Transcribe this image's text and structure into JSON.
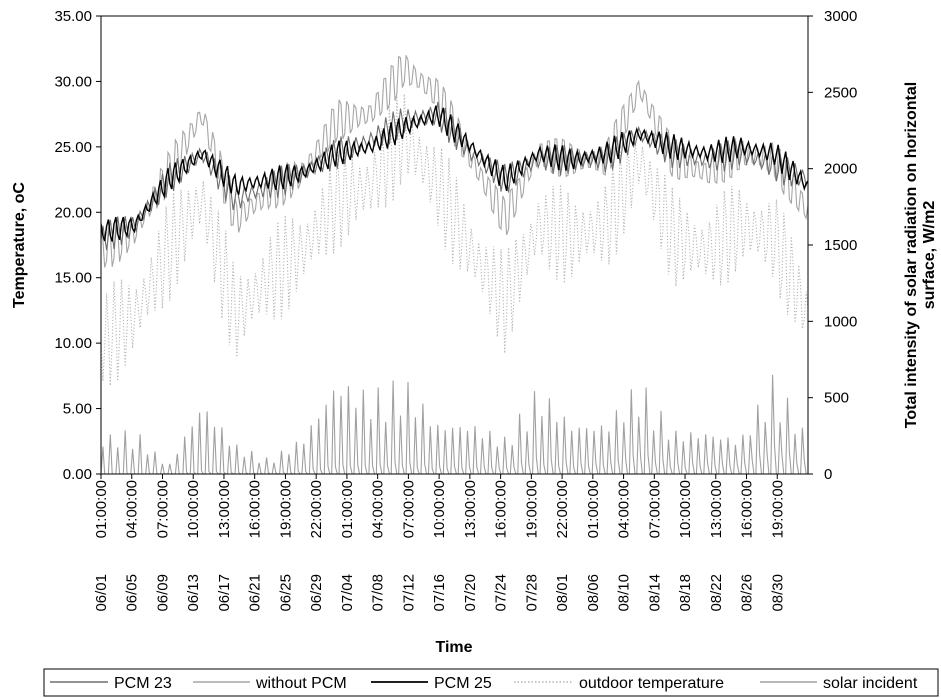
{
  "chart_data": {
    "type": "line",
    "xlabel": "Time",
    "ylabel_left": "Temperature, oC",
    "ylabel_right_line1": "Total intensity of solar radiation on horizontal",
    "ylabel_right_line2": "surface, W/m2",
    "ylim_left": [
      0,
      35
    ],
    "ylim_right": [
      0,
      3000
    ],
    "y_ticks_left": [
      "0.00",
      "5.00",
      "10.00",
      "15.00",
      "20.00",
      "25.00",
      "30.00",
      "35.00"
    ],
    "y_ticks_right": [
      "0",
      "500",
      "1000",
      "1500",
      "2000",
      "2500",
      "3000"
    ],
    "x_ticks": [
      {
        "date": "06/01",
        "time": "01:00:00"
      },
      {
        "date": "06/05",
        "time": "04:00:00"
      },
      {
        "date": "06/09",
        "time": "07:00:00"
      },
      {
        "date": "06/13",
        "time": "10:00:00"
      },
      {
        "date": "06/17",
        "time": "13:00:00"
      },
      {
        "date": "06/21",
        "time": "16:00:00"
      },
      {
        "date": "06/25",
        "time": "19:00:00"
      },
      {
        "date": "06/29",
        "time": "22:00:00"
      },
      {
        "date": "07/04",
        "time": "01:00:00"
      },
      {
        "date": "07/08",
        "time": "04:00:00"
      },
      {
        "date": "07/12",
        "time": "07:00:00"
      },
      {
        "date": "07/16",
        "time": "10:00:00"
      },
      {
        "date": "07/20",
        "time": "13:00:00"
      },
      {
        "date": "07/24",
        "time": "16:00:00"
      },
      {
        "date": "07/28",
        "time": "19:00:00"
      },
      {
        "date": "08/01",
        "time": "22:00:00"
      },
      {
        "date": "08/06",
        "time": "01:00:00"
      },
      {
        "date": "08/10",
        "time": "04:00:00"
      },
      {
        "date": "08/14",
        "time": "07:00:00"
      },
      {
        "date": "08/18",
        "time": "10:00:00"
      },
      {
        "date": "08/22",
        "time": "13:00:00"
      },
      {
        "date": "08/26",
        "time": "16:00:00"
      },
      {
        "date": "08/30",
        "time": "19:00:00"
      }
    ],
    "grid": false,
    "legend_position": "bottom",
    "series": [
      {
        "name": "PCM 23",
        "axis": "left",
        "color": "#6e6e6e",
        "style": "solid",
        "values": [
          18.0,
          19.0,
          22.5,
          24.5,
          21.0,
          22.0,
          23.0,
          24.5,
          25.5,
          27.0,
          27.5,
          24.5,
          22.5,
          24.0,
          24.0,
          24.0,
          26.0,
          24.5,
          24.0,
          24.5,
          23.5,
          22.5
        ]
      },
      {
        "name": "without PCM",
        "axis": "left",
        "color": "#a6a6a6",
        "style": "solid",
        "values": [
          17.0,
          18.5,
          23.0,
          27.5,
          19.5,
          21.5,
          23.0,
          27.0,
          27.5,
          31.0,
          29.0,
          24.0,
          19.5,
          24.5,
          24.0,
          24.0,
          29.5,
          24.0,
          23.0,
          24.5,
          24.0,
          20.0
        ]
      },
      {
        "name": "PCM 25",
        "axis": "left",
        "color": "#000000",
        "style": "solid",
        "values": [
          18.5,
          19.0,
          22.5,
          24.5,
          22.0,
          22.5,
          23.0,
          24.5,
          25.0,
          26.5,
          27.5,
          25.0,
          22.5,
          24.5,
          24.0,
          24.5,
          26.0,
          25.0,
          24.5,
          25.0,
          24.5,
          22.0
        ]
      },
      {
        "name": "outdoor temperature",
        "axis": "left",
        "color": "#b4b4b4",
        "style": "dotted",
        "values": [
          10.0,
          12.0,
          17.0,
          21.0,
          12.0,
          15.0,
          17.0,
          21.0,
          22.0,
          26.0,
          22.0,
          17.0,
          13.0,
          19.0,
          18.0,
          19.0,
          24.0,
          18.0,
          17.0,
          19.0,
          18.0,
          12.0
        ]
      },
      {
        "name": "solar incident",
        "axis": "right",
        "color": "#a0a0a0",
        "style": "solid",
        "values": [
          250,
          300,
          50,
          500,
          200,
          100,
          250,
          650,
          550,
          650,
          350,
          350,
          250,
          600,
          350,
          350,
          650,
          300,
          300,
          250,
          700,
          250
        ]
      }
    ]
  }
}
